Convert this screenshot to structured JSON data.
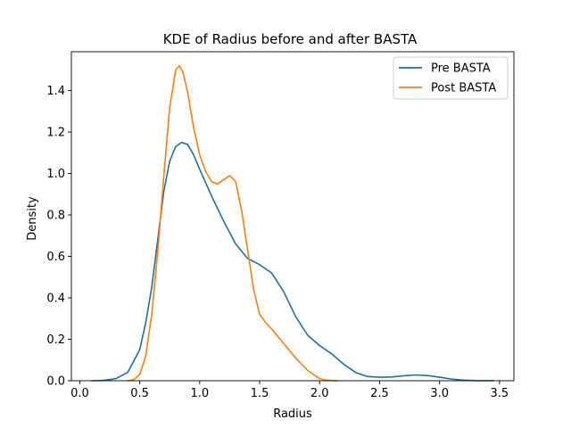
{
  "chart_data": {
    "type": "line",
    "title": "KDE of Radius before and after BASTA",
    "xlabel": "Radius",
    "ylabel": "Density",
    "xlim": [
      -0.07,
      3.62
    ],
    "ylim": [
      0,
      1.5877
    ],
    "xticks": [
      "0.0",
      "0.5",
      "1.0",
      "1.5",
      "2.0",
      "2.5",
      "3.0",
      "3.5"
    ],
    "xtick_values": [
      0.0,
      0.5,
      1.0,
      1.5,
      2.0,
      2.5,
      3.0,
      3.5
    ],
    "yticks": [
      "0.0",
      "0.2",
      "0.4",
      "0.6",
      "0.8",
      "1.0",
      "1.2",
      "1.4"
    ],
    "ytick_values": [
      0.0,
      0.2,
      0.4,
      0.6,
      0.8,
      1.0,
      1.2,
      1.4
    ],
    "grid": false,
    "legend_position": "top-right",
    "series": [
      {
        "name": "Pre BASTA",
        "color": "#1f6f9f",
        "points": [
          [
            0.1,
            0.0
          ],
          [
            0.2,
            0.002
          ],
          [
            0.3,
            0.01
          ],
          [
            0.4,
            0.04
          ],
          [
            0.5,
            0.15
          ],
          [
            0.55,
            0.28
          ],
          [
            0.6,
            0.45
          ],
          [
            0.65,
            0.68
          ],
          [
            0.7,
            0.91
          ],
          [
            0.75,
            1.06
          ],
          [
            0.8,
            1.13
          ],
          [
            0.85,
            1.15
          ],
          [
            0.9,
            1.14
          ],
          [
            0.95,
            1.09
          ],
          [
            1.0,
            1.02
          ],
          [
            1.1,
            0.89
          ],
          [
            1.2,
            0.77
          ],
          [
            1.3,
            0.66
          ],
          [
            1.4,
            0.59
          ],
          [
            1.5,
            0.56
          ],
          [
            1.6,
            0.52
          ],
          [
            1.7,
            0.43
          ],
          [
            1.8,
            0.31
          ],
          [
            1.9,
            0.22
          ],
          [
            2.0,
            0.17
          ],
          [
            2.1,
            0.13
          ],
          [
            2.2,
            0.08
          ],
          [
            2.3,
            0.04
          ],
          [
            2.4,
            0.02
          ],
          [
            2.5,
            0.017
          ],
          [
            2.6,
            0.018
          ],
          [
            2.7,
            0.024
          ],
          [
            2.8,
            0.028
          ],
          [
            2.9,
            0.025
          ],
          [
            3.0,
            0.017
          ],
          [
            3.1,
            0.008
          ],
          [
            3.2,
            0.003
          ],
          [
            3.3,
            0.001
          ],
          [
            3.45,
            0.0
          ]
        ]
      },
      {
        "name": "Post BASTA",
        "color": "#ff7f0e",
        "points": [
          [
            0.4,
            0.0
          ],
          [
            0.45,
            0.005
          ],
          [
            0.5,
            0.03
          ],
          [
            0.55,
            0.12
          ],
          [
            0.6,
            0.32
          ],
          [
            0.65,
            0.62
          ],
          [
            0.7,
            0.98
          ],
          [
            0.75,
            1.32
          ],
          [
            0.8,
            1.5
          ],
          [
            0.83,
            1.52
          ],
          [
            0.86,
            1.49
          ],
          [
            0.9,
            1.39
          ],
          [
            0.95,
            1.22
          ],
          [
            1.0,
            1.09
          ],
          [
            1.05,
            1.01
          ],
          [
            1.1,
            0.96
          ],
          [
            1.15,
            0.95
          ],
          [
            1.2,
            0.97
          ],
          [
            1.25,
            0.99
          ],
          [
            1.3,
            0.96
          ],
          [
            1.35,
            0.82
          ],
          [
            1.4,
            0.63
          ],
          [
            1.45,
            0.44
          ],
          [
            1.5,
            0.32
          ],
          [
            1.55,
            0.28
          ],
          [
            1.6,
            0.25
          ],
          [
            1.7,
            0.18
          ],
          [
            1.8,
            0.11
          ],
          [
            1.9,
            0.05
          ],
          [
            2.0,
            0.01
          ],
          [
            2.05,
            0.003
          ],
          [
            2.15,
            0.0
          ]
        ]
      }
    ]
  }
}
